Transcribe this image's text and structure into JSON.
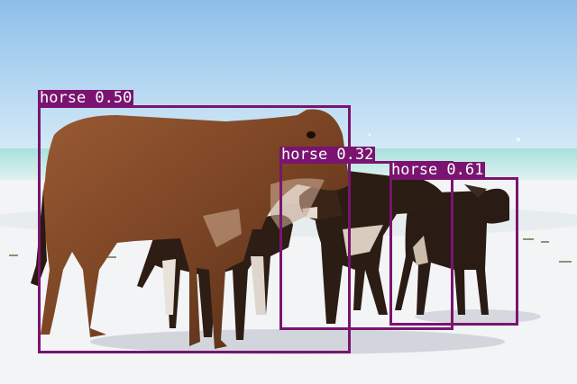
{
  "detections": [
    {
      "label": "horse 0.50",
      "color": "#7a1470"
    },
    {
      "label": "horse 0.32",
      "color": "#7a1470"
    },
    {
      "label": "horse 0.61",
      "color": "#7a1470"
    }
  ],
  "scene": {
    "sky_top": "#8fc1ea",
    "sky_bottom": "#d8ecf8",
    "sea": "#bfe6e2",
    "sand": "#f2f4f6"
  }
}
